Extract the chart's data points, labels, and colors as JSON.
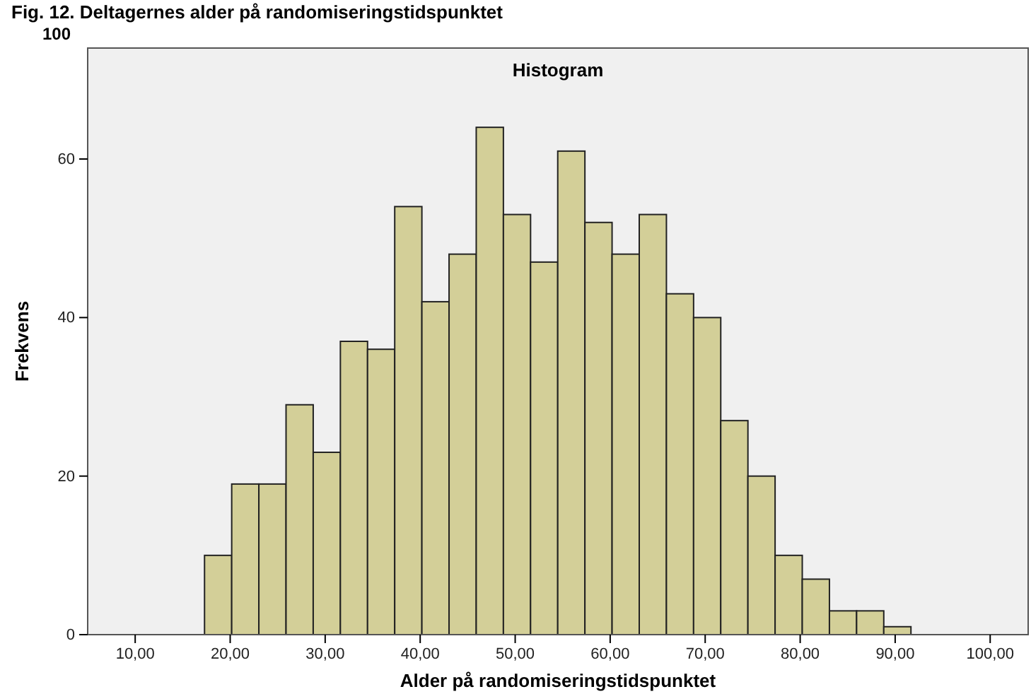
{
  "chart_data": {
    "type": "histogram",
    "title": "Fig. 12. Deltagernes alder på randomiseringstidspunktet",
    "subtitle": "Histogram",
    "xlabel": "Alder på randomiseringstidspunktet",
    "ylabel": "Frekvens",
    "annotations": [
      "100"
    ],
    "bins": [
      17.3,
      20.16,
      23.02,
      25.88,
      28.74,
      31.6,
      34.46,
      37.32,
      40.18,
      43.04,
      45.9,
      48.76,
      51.62,
      54.48,
      57.34,
      60.2,
      63.06,
      65.92,
      68.78,
      71.64,
      74.5,
      77.36,
      80.22,
      83.08,
      85.94,
      88.8,
      91.66
    ],
    "values": [
      10,
      19,
      19,
      29,
      23,
      37,
      36,
      54,
      42,
      48,
      64,
      53,
      47,
      61,
      52,
      48,
      53,
      43,
      40,
      27,
      20,
      10,
      7,
      3,
      3,
      1
    ],
    "color": "#d3cf98",
    "xlim": [
      5,
      104
    ],
    "xticks": [
      {
        "value": 10,
        "label": "10,00"
      },
      {
        "value": 20,
        "label": "20,00"
      },
      {
        "value": 30,
        "label": "30,00"
      },
      {
        "value": 40,
        "label": "40,00"
      },
      {
        "value": 50,
        "label": "50,00"
      },
      {
        "value": 60,
        "label": "60,00"
      },
      {
        "value": 70,
        "label": "70,00"
      },
      {
        "value": 80,
        "label": "80,00"
      },
      {
        "value": 90,
        "label": "90,00"
      },
      {
        "value": 100,
        "label": "100,00"
      }
    ],
    "ylim": [
      0,
      74
    ],
    "yticks": [
      0,
      20,
      40,
      60
    ],
    "grid": false
  }
}
